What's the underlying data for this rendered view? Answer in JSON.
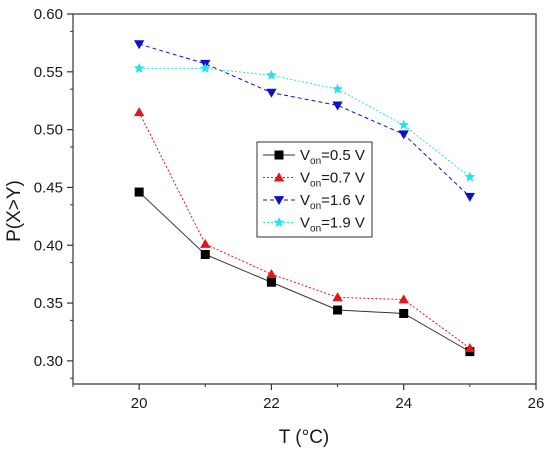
{
  "chart_data": {
    "type": "line",
    "title": "",
    "xlabel": "T (°C)",
    "ylabel": "P(X>Y)",
    "xlim": [
      19,
      26
    ],
    "ylim": [
      0.28,
      0.6
    ],
    "x_ticks": [
      20,
      22,
      24,
      26
    ],
    "x_tick_labels": [
      "20",
      "22",
      "24",
      "26"
    ],
    "y_ticks": [
      0.3,
      0.35,
      0.4,
      0.45,
      0.5,
      0.55,
      0.6
    ],
    "y_tick_labels": [
      "0.30",
      "0.35",
      "0.40",
      "0.45",
      "0.50",
      "0.55",
      "0.60"
    ],
    "grid": false,
    "legend_position": "center",
    "x": [
      20,
      21,
      22,
      23,
      24,
      25
    ],
    "series": [
      {
        "name_main": "V",
        "name_sub": "on",
        "name_rest": "=0.5 V",
        "marker": "square",
        "color": "#000000",
        "line_color": "#333333",
        "dash": "solid",
        "values": [
          0.446,
          0.392,
          0.368,
          0.344,
          0.341,
          0.308
        ]
      },
      {
        "name_main": "V",
        "name_sub": "on",
        "name_rest": "=0.7 V",
        "marker": "triangle-up",
        "color": "#e8141b",
        "line_color": "#e8141b",
        "dash": "dotted",
        "values": [
          0.515,
          0.401,
          0.375,
          0.355,
          0.353,
          0.311
        ]
      },
      {
        "name_main": "V",
        "name_sub": "on",
        "name_rest": "=1.6 V",
        "marker": "triangle-down",
        "color": "#1010c8",
        "line_color": "#1010c8",
        "dash": "dashed",
        "values": [
          0.574,
          0.557,
          0.532,
          0.521,
          0.496,
          0.442
        ]
      },
      {
        "name_main": "V",
        "name_sub": "on",
        "name_rest": "=1.9 V",
        "marker": "star",
        "color": "#29e0f0",
        "line_color": "#29e0f0",
        "dash": "dotted",
        "values": [
          0.553,
          0.553,
          0.547,
          0.535,
          0.504,
          0.459
        ]
      }
    ]
  }
}
